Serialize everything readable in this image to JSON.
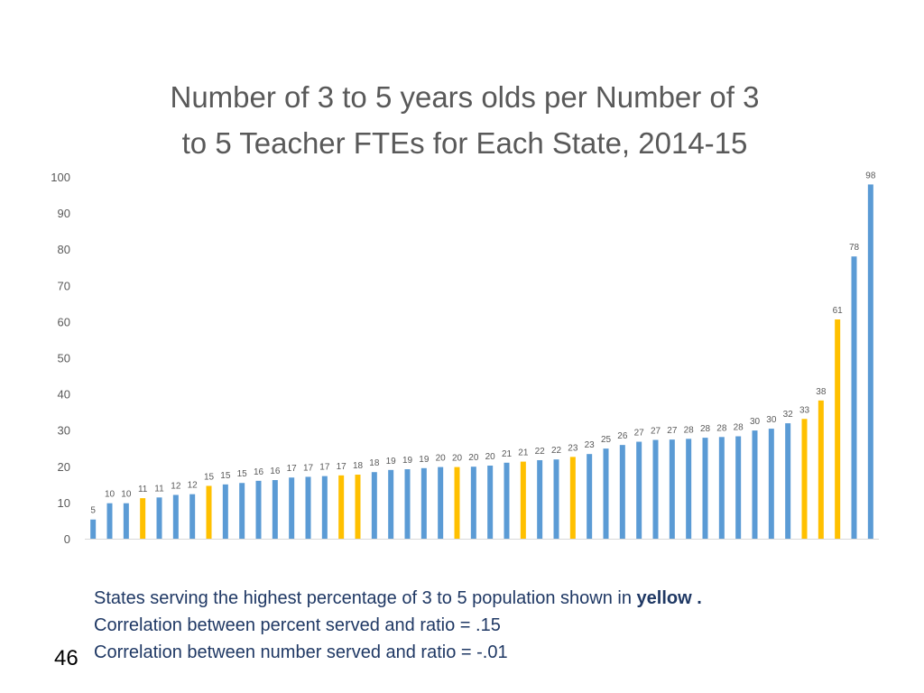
{
  "chart_data": {
    "type": "bar",
    "title": "Number of 3 to 5 years olds per Number of 3 to 5 Teacher FTEs for Each State, 2014-15",
    "title_lines": [
      "Number of 3 to 5 years olds per Number of 3",
      "to 5 Teacher FTEs for Each State, 2014-15"
    ],
    "xlabel": "",
    "ylabel": "",
    "ylim": [
      0,
      100
    ],
    "yticks": [
      0,
      10,
      20,
      30,
      40,
      50,
      60,
      70,
      80,
      90,
      100
    ],
    "grid": false,
    "values": [
      5.3,
      9.8,
      9.8,
      11.2,
      11.4,
      12.1,
      12.3,
      14.6,
      15.0,
      15.4,
      16.0,
      16.2,
      16.9,
      17.1,
      17.3,
      17.5,
      17.7,
      18.4,
      19.0,
      19.2,
      19.5,
      19.8,
      19.8,
      19.9,
      20.2,
      21.0,
      21.3,
      21.7,
      21.9,
      22.6,
      23.4,
      24.9,
      25.9,
      26.8,
      27.3,
      27.4,
      27.6,
      27.9,
      28.1,
      28.3,
      29.9,
      30.4,
      31.9,
      33.1,
      38.2,
      60.6,
      78.0,
      97.9
    ],
    "labels": [
      "5",
      "10",
      "10",
      "11",
      "11",
      "12",
      "12",
      "15",
      "15",
      "15",
      "16",
      "16",
      "17",
      "17",
      "17",
      "17",
      "18",
      "18",
      "19",
      "19",
      "19",
      "20",
      "20",
      "20",
      "20",
      "21",
      "21",
      "22",
      "22",
      "23",
      "23",
      "25",
      "26",
      "27",
      "27",
      "27",
      "28",
      "28",
      "28",
      "28",
      "30",
      "30",
      "32",
      "33",
      "38",
      "61",
      "78",
      "98"
    ],
    "highlight": [
      false,
      false,
      false,
      true,
      false,
      false,
      false,
      true,
      false,
      false,
      false,
      false,
      false,
      false,
      false,
      true,
      true,
      false,
      false,
      false,
      false,
      false,
      true,
      false,
      false,
      false,
      true,
      false,
      false,
      true,
      false,
      false,
      false,
      false,
      false,
      false,
      false,
      false,
      false,
      false,
      false,
      false,
      false,
      true,
      true,
      true,
      false,
      false
    ],
    "colors": {
      "default": "#5b9bd5",
      "highlight": "#ffc000",
      "axis": "#d9d9d9",
      "tick_text": "#595959",
      "label_text": "#595959"
    }
  },
  "notes": {
    "line1_prefix": "States serving the highest percentage of 3 to 5 population shown in ",
    "line1_bold": "yellow .",
    "line2": "Correlation between percent served and ratio = .15",
    "line3": "Correlation between number served and ratio = -.01"
  },
  "slide_number": "46"
}
